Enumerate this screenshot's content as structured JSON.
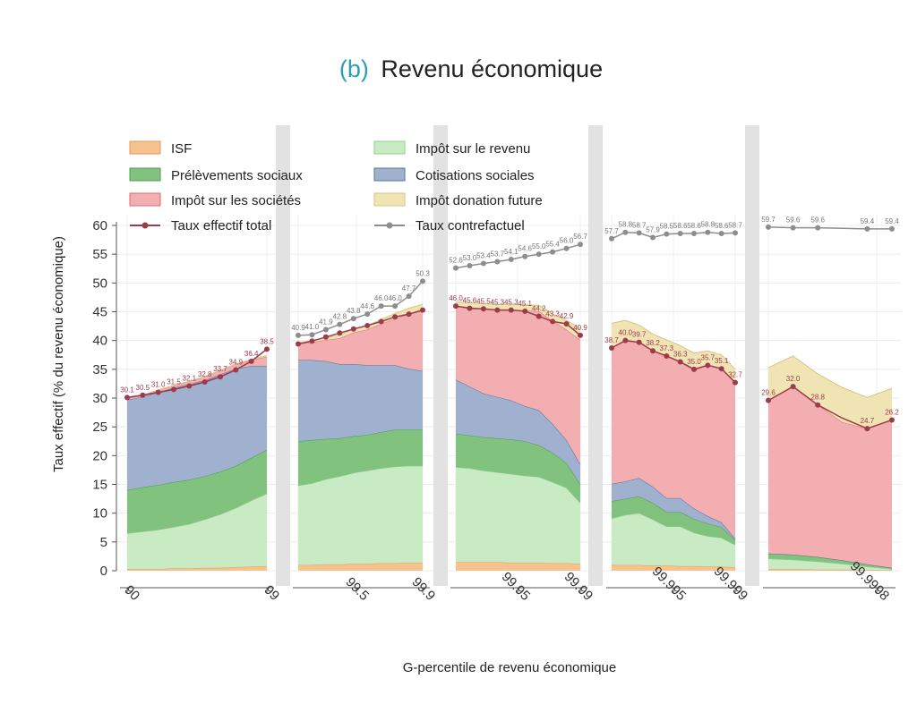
{
  "chart_data": {
    "type": "area",
    "title_prefix": "(b)",
    "title": "Revenu économique",
    "xlabel": "G-percentile de revenu économique",
    "ylabel": "Taux effectif (% du revenu économique)",
    "ylim": [
      0,
      60
    ],
    "yticks": [
      0,
      5,
      10,
      15,
      20,
      25,
      30,
      35,
      40,
      45,
      50,
      55,
      60
    ],
    "xtick_labels": [
      "90",
      "99",
      "99.5",
      "99.9",
      "99.95",
      "99.99",
      "99.995",
      "99.999",
      "99.9998"
    ],
    "grid": true,
    "legend_position": "top-left",
    "colors": {
      "isf": "#f6c28f",
      "impot_revenu": "#c9ebc4",
      "prelevements_sociaux": "#82c27f",
      "cotisations_sociales": "#9fb1cf",
      "impot_societes": "#f2aeb0",
      "impot_donation_future": "#f1e4b4",
      "taux_effectif_total": "#9c3b4a",
      "taux_contrefactuel": "#8d8d8d"
    },
    "legend": {
      "isf": "ISF",
      "impot_revenu": "Impôt sur le revenu",
      "prelevements_sociaux": "Prélèvements sociaux",
      "cotisations_sociales": "Cotisations sociales",
      "impot_societes": "Impôt sur les sociétés",
      "impot_donation_future": "Impôt donation future",
      "taux_effectif_total": "Taux effectif total",
      "taux_contrefactuel": "Taux contrefactuel"
    },
    "panels": [
      {
        "x_start_label": "90",
        "x_end_label": "99",
        "isf": [
          0.3,
          0.3,
          0.3,
          0.4,
          0.4,
          0.5,
          0.5,
          0.6,
          0.7,
          0.8
        ],
        "impot_revenu": [
          6.2,
          6.5,
          6.8,
          7.2,
          7.7,
          8.4,
          9.3,
          10.3,
          11.5,
          12.6
        ],
        "prelevements_sociaux": [
          7.5,
          7.7,
          7.8,
          7.8,
          7.7,
          7.5,
          7.4,
          7.3,
          7.4,
          7.6
        ],
        "cotisations_sociales": [
          15.7,
          15.7,
          16.1,
          16.4,
          16.6,
          16.7,
          16.9,
          16.9,
          16.0,
          14.6
        ],
        "impot_societes": [
          0.3,
          0.3,
          0.4,
          0.4,
          0.5,
          0.6,
          0.7,
          0.8,
          1.0,
          1.6
        ],
        "impot_donation_future": [
          0,
          0,
          0,
          0,
          0,
          0,
          0,
          0,
          0.1,
          0.2
        ],
        "taux_effectif_total": [
          30.1,
          30.5,
          31.0,
          31.5,
          32.1,
          32.8,
          33.7,
          34.9,
          36.4,
          38.5
        ],
        "taux_contrefactuel": [
          30.1,
          30.5,
          31.0,
          31.5,
          32.1,
          32.8,
          33.7,
          34.9,
          36.4,
          38.5
        ],
        "total_labels": [
          "30.1",
          "30.5",
          "31.0",
          "31.5",
          "32.1",
          "32.8",
          "33.7",
          "34.9",
          "36.4",
          "38.5"
        ]
      },
      {
        "x_start_label": "",
        "x_end_label": "99.9",
        "x_mid_label": "99.5",
        "isf": [
          1.0,
          1.0,
          1.1,
          1.1,
          1.2,
          1.2,
          1.3,
          1.3,
          1.4,
          1.4
        ],
        "impot_revenu": [
          13.8,
          14.2,
          14.8,
          15.3,
          15.8,
          16.2,
          16.5,
          16.8,
          16.8,
          16.8
        ],
        "prelevements_sociaux": [
          7.7,
          7.5,
          7.0,
          6.6,
          6.4,
          6.2,
          6.3,
          6.4,
          6.3,
          6.3
        ],
        "cotisations_sociales": [
          14.1,
          13.9,
          13.5,
          12.9,
          12.5,
          12.1,
          11.6,
          11.2,
          10.6,
          10.2
        ],
        "impot_societes": [
          2.8,
          3.1,
          3.7,
          4.5,
          5.5,
          6.2,
          7.2,
          8.1,
          9.5,
          10.6
        ],
        "impot_donation_future": [
          0.2,
          0.3,
          0.4,
          0.5,
          0.6,
          0.7,
          0.8,
          0.9,
          1.0,
          1.0
        ],
        "taux_effectif_total": [
          39.4,
          39.9,
          40.6,
          41.3,
          42.0,
          42.6,
          43.3,
          44.1,
          44.6,
          45.3
        ],
        "taux_contrefactuel": [
          40.9,
          41.0,
          41.9,
          42.8,
          43.8,
          44.6,
          46.0,
          46.0,
          47.7,
          50.3
        ],
        "contre_labels": [
          "40.9",
          "41.0",
          "41.9",
          "42.8",
          "43.8",
          "44.6",
          "46.0",
          "46.0",
          "47.7",
          "50.3"
        ]
      },
      {
        "x_start_label": "",
        "x_end_label": "99.99",
        "x_mid_label": "99.95",
        "isf": [
          1.5,
          1.5,
          1.5,
          1.5,
          1.4,
          1.4,
          1.4,
          1.3,
          1.3,
          1.2
        ],
        "impot_revenu": [
          16.5,
          16.3,
          15.9,
          15.6,
          15.4,
          15.1,
          14.9,
          14.1,
          13.1,
          10.6
        ],
        "prelevements_sociaux": [
          5.8,
          5.7,
          5.8,
          5.9,
          6.0,
          6.0,
          5.5,
          5.1,
          4.3,
          3.2
        ],
        "cotisations_sociales": [
          9.4,
          8.5,
          7.6,
          7.2,
          6.8,
          6.1,
          6.1,
          5.0,
          4.0,
          3.5
        ],
        "impot_societes": [
          12.8,
          13.8,
          14.7,
          15.1,
          15.7,
          16.6,
          17.2,
          17.9,
          19.2,
          21.6
        ],
        "impot_donation_future": [
          0.7,
          0.8,
          0.9,
          0.9,
          1.0,
          1.0,
          1.0,
          1.2,
          1.6,
          2.0
        ],
        "taux_effectif_total": [
          46.0,
          45.6,
          45.5,
          45.3,
          45.3,
          45.1,
          44.2,
          43.3,
          42.9,
          40.9
        ],
        "taux_contrefactuel": [
          52.6,
          53.0,
          53.4,
          53.7,
          54.1,
          54.6,
          55.0,
          55.4,
          56.0,
          56.7
        ],
        "total_labels": [
          "46.0",
          "45.6",
          "45.5",
          "45.3",
          "45.3",
          "45.1",
          "44.2",
          "43.3",
          "42.9",
          "40.9"
        ],
        "contre_labels": [
          "52.6",
          "53.0",
          "53.4",
          "53.7",
          "54.1",
          "54.6",
          "55.0",
          "55.4",
          "56.0",
          "56.7"
        ]
      },
      {
        "x_start_label": "",
        "x_end_label": "99.999",
        "x_mid_label": "99.995",
        "isf": [
          1.0,
          1.0,
          1.0,
          0.9,
          0.9,
          0.8,
          0.8,
          0.7,
          0.7,
          0.6
        ],
        "impot_revenu": [
          8.1,
          8.7,
          9.0,
          8.0,
          6.8,
          6.9,
          5.8,
          5.3,
          5.0,
          3.9
        ],
        "prelevements_sociaux": [
          3.0,
          2.8,
          2.9,
          2.9,
          2.5,
          2.5,
          2.4,
          2.2,
          1.9,
          0.8
        ],
        "cotisations_sociales": [
          3.0,
          3.0,
          3.2,
          2.8,
          2.4,
          2.4,
          1.8,
          1.3,
          0.8,
          0.3
        ],
        "impot_societes": [
          23.7,
          24.5,
          23.6,
          23.6,
          24.7,
          23.7,
          24.0,
          26.2,
          26.7,
          27.1
        ],
        "impot_donation_future": [
          4.2,
          3.5,
          3.0,
          2.9,
          2.8,
          2.8,
          3.0,
          2.5,
          2.4,
          2.3
        ],
        "taux_effectif_total": [
          38.7,
          40.0,
          39.7,
          38.2,
          37.3,
          36.3,
          35.0,
          35.7,
          35.1,
          32.7
        ],
        "taux_contrefactuel": [
          57.7,
          58.8,
          58.7,
          57.9,
          58.5,
          58.6,
          58.6,
          58.8,
          58.6,
          58.7
        ],
        "total_labels": [
          "38.7",
          "40.0",
          "39.7",
          "38.2",
          "37.3",
          "36.3",
          "35.0",
          "35.7",
          "35.1",
          "32.7"
        ],
        "contre_labels": [
          "57.7",
          "58.8",
          "58.7",
          "57.9",
          "58.5",
          "58.6",
          "58.6",
          "58.8",
          "58.6",
          "58.7"
        ]
      },
      {
        "x_start_label": "",
        "x_end_label": "99.9998",
        "isf": [
          0.3,
          0.3,
          0.2,
          0.2,
          0.1,
          0.1
        ],
        "impot_revenu": [
          1.8,
          1.6,
          1.4,
          1.0,
          0.6,
          0.2
        ],
        "prelevements_sociaux": [
          0.9,
          0.9,
          0.8,
          0.6,
          0.4,
          0.2
        ],
        "cotisations_sociales": [
          0,
          0,
          0,
          0,
          0,
          0
        ],
        "impot_societes": [
          26.6,
          29.2,
          26.4,
          24.0,
          23.6,
          25.7
        ],
        "impot_donation_future": [
          5.7,
          5.3,
          5.4,
          6.0,
          5.4,
          5.5
        ],
        "taux_effectif_total": [
          29.6,
          32.0,
          28.8,
          26.5,
          24.7,
          26.2
        ],
        "taux_contrefactuel": [
          59.7,
          59.6,
          59.6,
          59.5,
          59.4,
          59.4
        ],
        "total_labels": [
          "29.6",
          "32.0",
          "28.8",
          "",
          "24.7",
          "26.2"
        ],
        "total_label_points": [
          0,
          1,
          2,
          4,
          5
        ],
        "contre_labels": [
          "59.7",
          "59.6",
          "59.6",
          "",
          "59.4",
          "59.4"
        ],
        "contre_label_points": [
          0,
          1,
          2,
          4,
          5
        ]
      }
    ]
  }
}
